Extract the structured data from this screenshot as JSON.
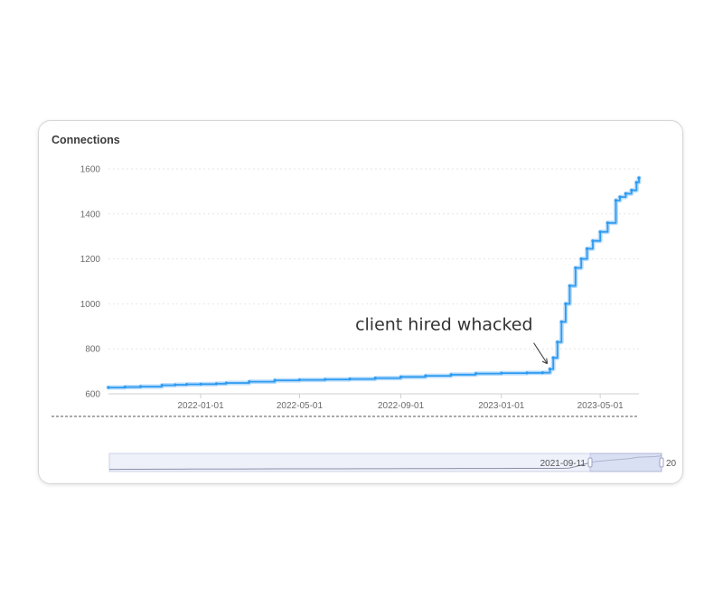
{
  "card": {
    "title": "Connections"
  },
  "chart_data": {
    "type": "line",
    "title": "Connections",
    "xlabel": "",
    "ylabel": "",
    "ylim": [
      600,
      1600
    ],
    "xlim": [
      "2021-09-11",
      "2023-06-17"
    ],
    "yticks": [
      600,
      800,
      1000,
      1200,
      1400,
      1600
    ],
    "xticks": [
      "2022-01-01",
      "2022-05-01",
      "2022-09-01",
      "2023-01-01",
      "2023-05-01"
    ],
    "grid": true,
    "legend": "none",
    "colors": {
      "line": "#2e9bf0",
      "halo": "#a9d4fb"
    },
    "series": [
      {
        "x": [
          "2021-09-11",
          "2021-10-01",
          "2021-10-20",
          "2021-11-15",
          "2021-12-01",
          "2021-12-15",
          "2022-01-01",
          "2022-01-20",
          "2022-02-01",
          "2022-03-01",
          "2022-04-01",
          "2022-05-01",
          "2022-06-01",
          "2022-07-01",
          "2022-08-01",
          "2022-09-01",
          "2022-10-01",
          "2022-11-01",
          "2022-12-01",
          "2023-01-01",
          "2023-02-01",
          "2023-02-20",
          "2023-03-01",
          "2023-03-05",
          "2023-03-10",
          "2023-03-15",
          "2023-03-20",
          "2023-03-25",
          "2023-04-01",
          "2023-04-08",
          "2023-04-15",
          "2023-04-22",
          "2023-05-01",
          "2023-05-10",
          "2023-05-20",
          "2023-05-25",
          "2023-06-01",
          "2023-06-08",
          "2023-06-14",
          "2023-06-17"
        ],
        "values": [
          628,
          630,
          632,
          638,
          640,
          642,
          643,
          645,
          648,
          654,
          660,
          662,
          664,
          666,
          670,
          675,
          680,
          685,
          690,
          692,
          693,
          694,
          710,
          760,
          830,
          920,
          1000,
          1080,
          1160,
          1200,
          1245,
          1280,
          1320,
          1360,
          1460,
          1475,
          1490,
          1505,
          1540,
          1560
        ]
      }
    ],
    "annotations": [
      {
        "text": "client hired whacked",
        "x": "2023-03-01",
        "y": 710
      }
    ],
    "zoom_slider": {
      "start_label": "2021-09-11",
      "end_label": "20"
    }
  }
}
